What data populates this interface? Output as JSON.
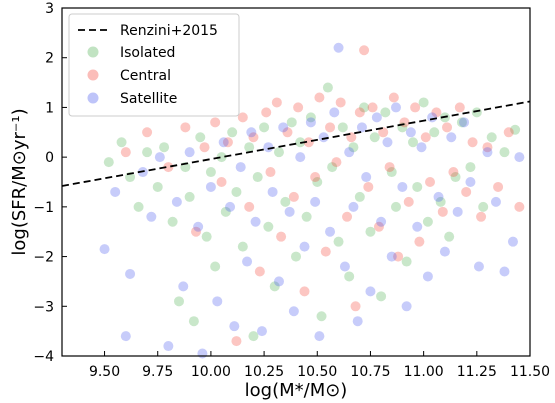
{
  "chart_data": {
    "type": "scatter",
    "xlabel": "log(M*/M⊙)",
    "ylabel": "log(SFR/M⊙yr⁻¹)",
    "xlim": [
      9.3,
      11.5
    ],
    "ylim": [
      -4,
      3
    ],
    "x_ticks": [
      9.5,
      9.75,
      10.0,
      10.25,
      10.5,
      10.75,
      11.0,
      11.25,
      11.5
    ],
    "x_tick_labels": [
      "9.50",
      "9.75",
      "10.00",
      "10.25",
      "10.50",
      "10.75",
      "11.00",
      "11.25",
      "11.50"
    ],
    "y_ticks": [
      -4,
      -3,
      -2,
      -1,
      0,
      1,
      2,
      3
    ],
    "y_tick_labels": [
      "−4",
      "−3",
      "−2",
      "−1",
      "0",
      "1",
      "2",
      "3"
    ],
    "legend_position": "top-left",
    "grid": false,
    "reference_line": {
      "name": "Renzini+2015",
      "style": "dashed",
      "color": "#000000",
      "x": [
        9.3,
        11.5
      ],
      "y": [
        -0.58,
        1.12
      ]
    },
    "series": [
      {
        "name": "Isolated",
        "color": "#4caf50",
        "points": [
          [
            9.52,
            -0.1
          ],
          [
            9.58,
            0.3
          ],
          [
            9.62,
            -0.4
          ],
          [
            9.66,
            -1.0
          ],
          [
            9.7,
            0.1
          ],
          [
            9.75,
            -0.6
          ],
          [
            9.78,
            0.2
          ],
          [
            9.82,
            -1.3
          ],
          [
            9.85,
            -2.9
          ],
          [
            9.88,
            -0.2
          ],
          [
            9.9,
            -0.8
          ],
          [
            9.92,
            -3.3
          ],
          [
            9.95,
            0.4
          ],
          [
            9.98,
            -1.6
          ],
          [
            10.0,
            -0.3
          ],
          [
            10.02,
            -2.2
          ],
          [
            10.05,
            0.0
          ],
          [
            10.07,
            -1.1
          ],
          [
            10.1,
            0.5
          ],
          [
            10.12,
            -0.7
          ],
          [
            10.15,
            -1.8
          ],
          [
            10.18,
            0.2
          ],
          [
            10.2,
            -3.6
          ],
          [
            10.22,
            -0.4
          ],
          [
            10.25,
            0.6
          ],
          [
            10.27,
            -1.4
          ],
          [
            10.3,
            -2.6
          ],
          [
            10.32,
            0.1
          ],
          [
            10.35,
            -0.9
          ],
          [
            10.38,
            0.7
          ],
          [
            10.4,
            -2.0
          ],
          [
            10.42,
            0.3
          ],
          [
            10.45,
            -1.2
          ],
          [
            10.47,
            0.8
          ],
          [
            10.5,
            -0.5
          ],
          [
            10.52,
            -3.2
          ],
          [
            10.55,
            1.4
          ],
          [
            10.57,
            -0.2
          ],
          [
            10.6,
            -1.7
          ],
          [
            10.62,
            0.6
          ],
          [
            10.65,
            -2.4
          ],
          [
            10.67,
            0.2
          ],
          [
            10.7,
            -0.8
          ],
          [
            10.72,
            1.0
          ],
          [
            10.75,
            -1.5
          ],
          [
            10.77,
            0.4
          ],
          [
            10.8,
            -2.8
          ],
          [
            10.82,
            0.9
          ],
          [
            10.85,
            -0.3
          ],
          [
            10.87,
            -1.0
          ],
          [
            10.9,
            0.6
          ],
          [
            10.92,
            -2.1
          ],
          [
            10.95,
            0.3
          ],
          [
            10.97,
            -0.6
          ],
          [
            11.0,
            1.1
          ],
          [
            11.02,
            -1.3
          ],
          [
            11.05,
            0.5
          ],
          [
            11.08,
            -0.9
          ],
          [
            11.1,
            0.8
          ],
          [
            11.12,
            -1.6
          ],
          [
            11.15,
            -0.4
          ],
          [
            11.18,
            0.7
          ],
          [
            11.22,
            -0.2
          ],
          [
            11.25,
            0.9
          ],
          [
            11.28,
            -1.0
          ],
          [
            11.32,
            0.4
          ],
          [
            11.38,
            0.1
          ],
          [
            11.43,
            0.55
          ]
        ]
      },
      {
        "name": "Central",
        "color": "#f44336",
        "points": [
          [
            9.6,
            0.1
          ],
          [
            9.7,
            0.5
          ],
          [
            9.8,
            -0.2
          ],
          [
            9.88,
            0.6
          ],
          [
            9.93,
            -1.5
          ],
          [
            9.97,
            0.2
          ],
          [
            10.02,
            0.7
          ],
          [
            10.05,
            -0.5
          ],
          [
            10.08,
            0.3
          ],
          [
            10.12,
            -3.7
          ],
          [
            10.15,
            0.8
          ],
          [
            10.18,
            -1.0
          ],
          [
            10.2,
            0.4
          ],
          [
            10.23,
            -2.3
          ],
          [
            10.26,
            0.9
          ],
          [
            10.28,
            -0.3
          ],
          [
            10.31,
            1.1
          ],
          [
            10.33,
            -1.6
          ],
          [
            10.36,
            0.5
          ],
          [
            10.39,
            -0.8
          ],
          [
            10.41,
            1.0
          ],
          [
            10.44,
            -2.7
          ],
          [
            10.46,
            0.3
          ],
          [
            10.49,
            -0.4
          ],
          [
            10.51,
            1.2
          ],
          [
            10.54,
            -1.9
          ],
          [
            10.56,
            0.6
          ],
          [
            10.59,
            -0.1
          ],
          [
            10.61,
            1.1
          ],
          [
            10.64,
            -1.2
          ],
          [
            10.66,
            0.4
          ],
          [
            10.68,
            -3.0
          ],
          [
            10.7,
            0.9
          ],
          [
            10.72,
            2.15
          ],
          [
            10.74,
            -0.6
          ],
          [
            10.76,
            1.0
          ],
          [
            10.79,
            -1.4
          ],
          [
            10.81,
            0.5
          ],
          [
            10.84,
            -0.2
          ],
          [
            10.86,
            1.2
          ],
          [
            10.88,
            -2.0
          ],
          [
            10.91,
            0.7
          ],
          [
            10.93,
            -0.9
          ],
          [
            10.96,
            1.0
          ],
          [
            10.98,
            -1.7
          ],
          [
            11.01,
            0.4
          ],
          [
            11.03,
            -0.5
          ],
          [
            11.06,
            0.9
          ],
          [
            11.09,
            -1.1
          ],
          [
            11.11,
            0.6
          ],
          [
            11.14,
            -0.3
          ],
          [
            11.17,
            1.0
          ],
          [
            11.2,
            -0.7
          ],
          [
            11.23,
            0.3
          ],
          [
            11.27,
            -1.2
          ],
          [
            11.3,
            0.2
          ],
          [
            11.35,
            -0.6
          ],
          [
            11.4,
            0.5
          ],
          [
            11.45,
            -1.0
          ]
        ]
      },
      {
        "name": "Satellite",
        "color": "#4455ee",
        "points": [
          [
            9.5,
            -1.85
          ],
          [
            9.55,
            -0.7
          ],
          [
            9.6,
            -3.6
          ],
          [
            9.62,
            -2.35
          ],
          [
            9.68,
            -0.3
          ],
          [
            9.72,
            -1.2
          ],
          [
            9.76,
            0.0
          ],
          [
            9.8,
            -3.8
          ],
          [
            9.84,
            -0.9
          ],
          [
            9.87,
            -2.6
          ],
          [
            9.9,
            0.1
          ],
          [
            9.94,
            -1.4
          ],
          [
            9.96,
            -3.95
          ],
          [
            10.0,
            -0.6
          ],
          [
            10.03,
            -2.9
          ],
          [
            10.06,
            0.3
          ],
          [
            10.09,
            -1.0
          ],
          [
            10.11,
            -3.4
          ],
          [
            10.14,
            -0.2
          ],
          [
            10.17,
            -2.1
          ],
          [
            10.19,
            0.5
          ],
          [
            10.21,
            -1.3
          ],
          [
            10.24,
            -3.5
          ],
          [
            10.27,
            0.2
          ],
          [
            10.29,
            -0.7
          ],
          [
            10.32,
            -2.5
          ],
          [
            10.34,
            0.6
          ],
          [
            10.37,
            -1.1
          ],
          [
            10.39,
            -3.1
          ],
          [
            10.42,
            0.0
          ],
          [
            10.44,
            -1.8
          ],
          [
            10.47,
            0.7
          ],
          [
            10.49,
            -0.9
          ],
          [
            10.51,
            -3.6
          ],
          [
            10.53,
            0.4
          ],
          [
            10.56,
            -1.5
          ],
          [
            10.58,
            0.9
          ],
          [
            10.6,
            2.2
          ],
          [
            10.63,
            -2.2
          ],
          [
            10.65,
            0.1
          ],
          [
            10.67,
            -1.0
          ],
          [
            10.69,
            -3.3
          ],
          [
            10.71,
            0.6
          ],
          [
            10.73,
            -0.4
          ],
          [
            10.75,
            -2.7
          ],
          [
            10.78,
            0.8
          ],
          [
            10.8,
            -1.3
          ],
          [
            10.83,
            0.3
          ],
          [
            10.85,
            -2.0
          ],
          [
            10.87,
            1.0
          ],
          [
            10.9,
            -0.6
          ],
          [
            10.92,
            -3.0
          ],
          [
            10.94,
            0.5
          ],
          [
            10.97,
            -1.4
          ],
          [
            10.99,
            0.2
          ],
          [
            11.02,
            -2.4
          ],
          [
            11.04,
            0.8
          ],
          [
            11.07,
            -0.8
          ],
          [
            11.1,
            -1.9
          ],
          [
            11.13,
            0.4
          ],
          [
            11.16,
            -1.1
          ],
          [
            11.19,
            0.7
          ],
          [
            11.22,
            -0.5
          ],
          [
            11.26,
            -2.2
          ],
          [
            11.3,
            0.1
          ],
          [
            11.34,
            -0.9
          ],
          [
            11.38,
            -2.3
          ],
          [
            11.42,
            -1.7
          ],
          [
            11.45,
            0.0
          ]
        ]
      }
    ]
  }
}
